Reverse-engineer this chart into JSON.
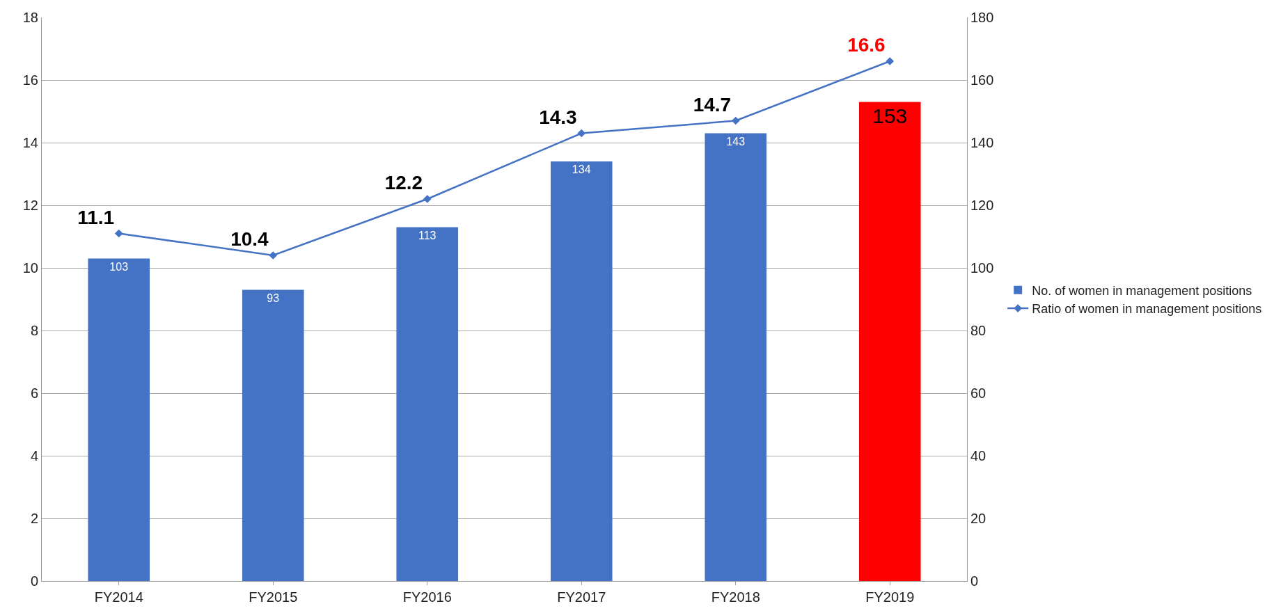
{
  "chart_data": {
    "type": "bar",
    "categories": [
      "FY2014",
      "FY2015",
      "FY2016",
      "FY2017",
      "FY2018",
      "FY2019"
    ],
    "series": [
      {
        "name": "No. of women in management positions",
        "axis": "y2",
        "color": "#4472c4",
        "colors": [
          "#4472c4",
          "#4472c4",
          "#4472c4",
          "#4472c4",
          "#4472c4",
          "#ff0000"
        ],
        "values": [
          103,
          93,
          113,
          134,
          143,
          153
        ]
      },
      {
        "name": "Ratio of women in management positions",
        "type": "line",
        "axis": "y",
        "color": "#4472c4",
        "marker": "diamond",
        "values": [
          11.1,
          10.4,
          12.2,
          14.3,
          14.7,
          16.6
        ]
      }
    ],
    "ylim": [
      0,
      18
    ],
    "yticks": [
      0,
      2,
      4,
      6,
      8,
      10,
      12,
      14,
      16,
      18
    ],
    "y2lim": [
      0,
      180
    ],
    "y2ticks": [
      0,
      20,
      40,
      60,
      80,
      100,
      120,
      140,
      160,
      180
    ],
    "grid": "y",
    "legend": "right",
    "data_labels": true
  }
}
